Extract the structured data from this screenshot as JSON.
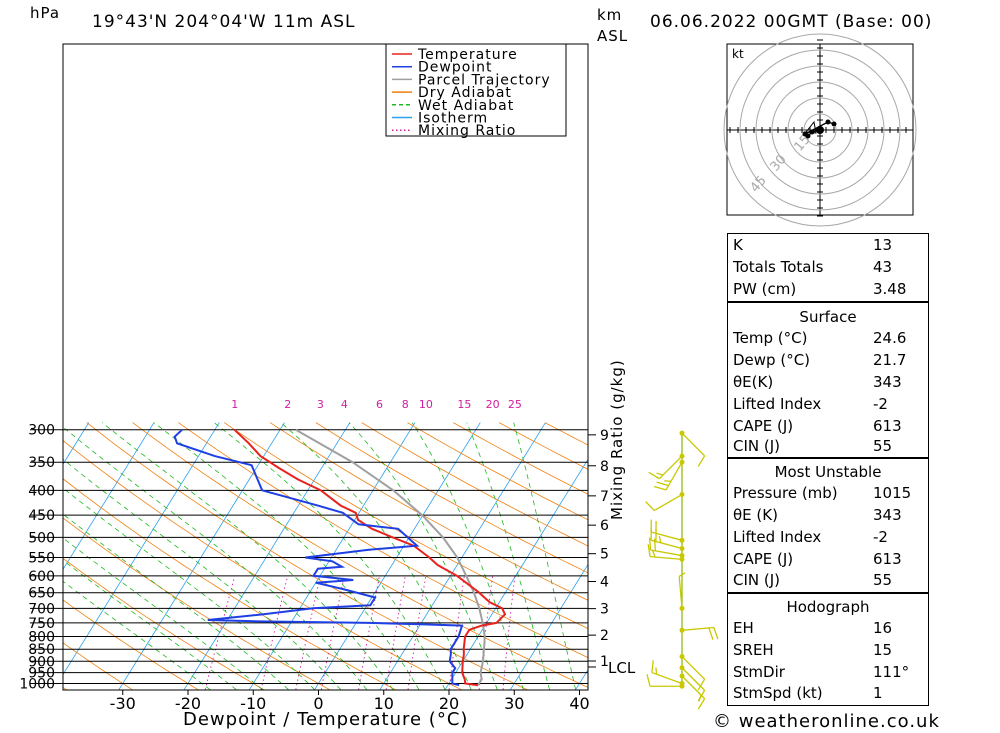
{
  "header": {
    "pressure_unit": "hPa",
    "location": "19°43'N  204°04'W  11m  ASL",
    "height_unit": "km",
    "height_ref": "ASL",
    "datetime": "06.06.2022  00GMT  (Base: 00)",
    "copyright": "© weatheronline.co.uk"
  },
  "legend": [
    {
      "label": "Temperature",
      "color": "#e8231e",
      "style": "solid"
    },
    {
      "label": "Dewpoint",
      "color": "#1d3fe3",
      "style": "solid"
    },
    {
      "label": "Parcel Trajectory",
      "color": "#a0a0a0",
      "style": "solid"
    },
    {
      "label": "Dry Adiabat",
      "color": "#f08010",
      "style": "solid"
    },
    {
      "label": "Wet Adiabat",
      "color": "#20b820",
      "style": "dashed"
    },
    {
      "label": "Isotherm",
      "color": "#2aa0f0",
      "style": "solid"
    },
    {
      "label": "Mixing Ratio",
      "color": "#d020a0",
      "style": "dotted"
    }
  ],
  "chart_data": {
    "type": "line",
    "subtype": "skew-T log-P sounding",
    "xlabel": "Dewpoint / Temperature (°C)",
    "ylabel": "hPa",
    "right_axis_label": "Mixing Ratio (g/kg)",
    "x_ticks": [
      -30,
      -20,
      -10,
      0,
      10,
      20,
      30,
      40
    ],
    "pressure_levels": [
      300,
      350,
      400,
      450,
      500,
      550,
      600,
      650,
      700,
      750,
      800,
      850,
      900,
      950,
      1000
    ],
    "height_ticks_km": [
      1,
      2,
      3,
      4,
      5,
      6,
      7,
      8,
      9
    ],
    "lcl_label": "LCL",
    "mixing_ratio_labels": [
      1,
      2,
      3,
      4,
      6,
      8,
      10,
      15,
      20,
      25
    ],
    "series": [
      {
        "name": "Temperature",
        "p": [
          1008,
          1000,
          980,
          950,
          925,
          900,
          870,
          850,
          800,
          775,
          760,
          750,
          720,
          700,
          680,
          650,
          600,
          570,
          550,
          520,
          500,
          480,
          460,
          445,
          430,
          400,
          380,
          360,
          340,
          320,
          300
        ],
        "t": [
          24.6,
          22.5,
          22.0,
          21.0,
          20.5,
          20.0,
          19.5,
          19.0,
          18.0,
          18.0,
          19.5,
          21.5,
          22.0,
          21.0,
          18.5,
          16.0,
          11.0,
          7.0,
          5.0,
          1.5,
          -2.5,
          -6.5,
          -9.5,
          -10.5,
          -13.5,
          -18.0,
          -22.5,
          -26.5,
          -30.5,
          -33.5,
          -37.0
        ]
      },
      {
        "name": "Dewpoint",
        "p": [
          1008,
          1000,
          950,
          930,
          900,
          870,
          850,
          800,
          760,
          755,
          750,
          745,
          740,
          720,
          700,
          690,
          665,
          640,
          620,
          612,
          600,
          580,
          575,
          560,
          550,
          530,
          520,
          480,
          470,
          445,
          430,
          400,
          355,
          340,
          320,
          310,
          300
        ],
        "t": [
          21.7,
          20.5,
          19.5,
          19.5,
          18.0,
          17.5,
          17.0,
          17.0,
          16.5,
          10.0,
          2.0,
          -15.0,
          -23.0,
          -15.0,
          -8.0,
          0.5,
          0.5,
          -5.0,
          -10.0,
          -4.5,
          -11.0,
          -11.0,
          -7.5,
          -9.5,
          -14.0,
          -5.0,
          2.0,
          -2.5,
          -9.0,
          -12.5,
          -17.0,
          -27.0,
          -31.0,
          -37.5,
          -44.5,
          -45.5,
          -45.0
        ]
      },
      {
        "name": "Parcel Trajectory",
        "p": [
          1008,
          980,
          950,
          920,
          890,
          860,
          830,
          800,
          750,
          700,
          650,
          600,
          550,
          500,
          450,
          400,
          350,
          300
        ],
        "t": [
          24.6,
          24.6,
          23.8,
          23.4,
          22.9,
          22.3,
          21.7,
          21.0,
          19.4,
          17.5,
          15.2,
          12.4,
          9.3,
          5.2,
          -0.1,
          -6.9,
          -15.8,
          -27.6
        ]
      }
    ],
    "wind_barbs": [
      {
        "p": 1013,
        "dir": 270,
        "kt": 10
      },
      {
        "p": 1000,
        "dir": 290,
        "kt": 15
      },
      {
        "p": 965,
        "dir": 135,
        "kt": 15
      },
      {
        "p": 928,
        "dir": 135,
        "kt": 10
      },
      {
        "p": 880,
        "dir": 135,
        "kt": 10
      },
      {
        "p": 777,
        "dir": 85,
        "kt": 20
      },
      {
        "p": 700,
        "dir": 355,
        "kt": 5
      },
      {
        "p": 555,
        "dir": 275,
        "kt": 15
      },
      {
        "p": 545,
        "dir": 280,
        "kt": 20
      },
      {
        "p": 527,
        "dir": 285,
        "kt": 25
      },
      {
        "p": 507,
        "dir": 285,
        "kt": 20
      },
      {
        "p": 408,
        "dir": 240,
        "kt": 10
      },
      {
        "p": 350,
        "dir": 210,
        "kt": 25
      },
      {
        "p": 340,
        "dir": 225,
        "kt": 15
      },
      {
        "p": 305,
        "dir": 135,
        "kt": 10
      }
    ],
    "hodograph": {
      "unit": "kt",
      "ring_labels": [
        "15",
        "30",
        "45"
      ],
      "points_kt": [
        [
          0,
          0
        ],
        [
          -8,
          -2
        ],
        [
          -12,
          -6
        ],
        [
          -15,
          -4
        ],
        [
          8,
          8
        ],
        [
          14,
          6
        ]
      ]
    }
  },
  "indices": {
    "general": [
      {
        "label": "K",
        "value": "13"
      },
      {
        "label": "Totals Totals",
        "value": "43"
      },
      {
        "label": "PW (cm)",
        "value": "3.48"
      }
    ],
    "surface_title": "Surface",
    "surface": [
      {
        "label": "Temp (°C)",
        "value": "24.6"
      },
      {
        "label": "Dewp (°C)",
        "value": "21.7"
      },
      {
        "label": "θE(K)",
        "value": "343"
      },
      {
        "label": "Lifted Index",
        "value": "-2"
      },
      {
        "label": "CAPE (J)",
        "value": "613"
      },
      {
        "label": "CIN (J)",
        "value": "55"
      }
    ],
    "mu_title": "Most Unstable",
    "most_unstable": [
      {
        "label": "Pressure (mb)",
        "value": "1015"
      },
      {
        "label": "θE (K)",
        "value": "343"
      },
      {
        "label": "Lifted Index",
        "value": "-2"
      },
      {
        "label": "CAPE (J)",
        "value": "613"
      },
      {
        "label": "CIN (J)",
        "value": "55"
      }
    ],
    "hodo_title": "Hodograph",
    "hodograph": [
      {
        "label": "EH",
        "value": "16"
      },
      {
        "label": "SREH",
        "value": "15"
      },
      {
        "label": "StmDir",
        "value": "111°"
      },
      {
        "label": "StmSpd (kt)",
        "value": "1"
      }
    ]
  }
}
